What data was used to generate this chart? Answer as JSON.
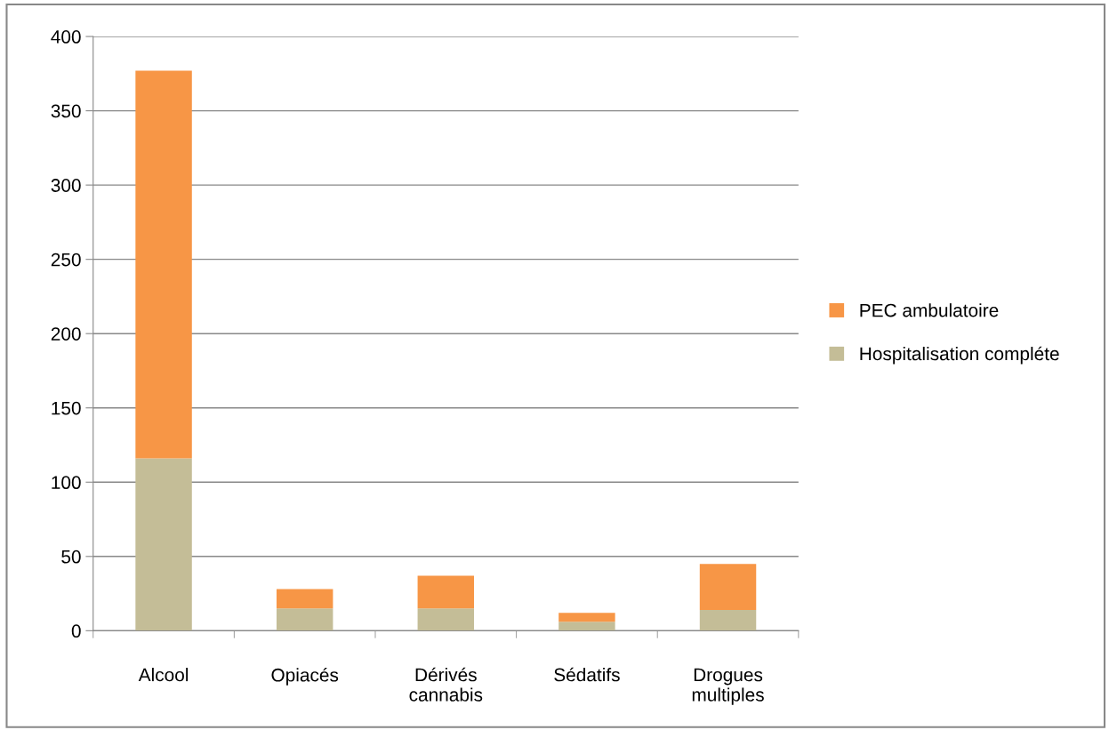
{
  "chart_data": {
    "type": "bar",
    "stacked": true,
    "categories": [
      "Alcool",
      "Opiacés",
      "Dérivés\ncannabis",
      "Sédatifs",
      "Drogues\nmultiples"
    ],
    "series": [
      {
        "name": "Hospitalisation compléte",
        "color": "#c4bd97",
        "values": [
          116,
          15,
          15,
          6,
          14
        ]
      },
      {
        "name": "PEC ambulatoire",
        "color": "#f79646",
        "values": [
          261,
          13,
          22,
          6,
          31
        ]
      }
    ],
    "ylim": [
      0,
      400
    ],
    "yticks": [
      0,
      50,
      100,
      150,
      200,
      250,
      300,
      350,
      400
    ],
    "grid": "y",
    "legend": "right"
  }
}
